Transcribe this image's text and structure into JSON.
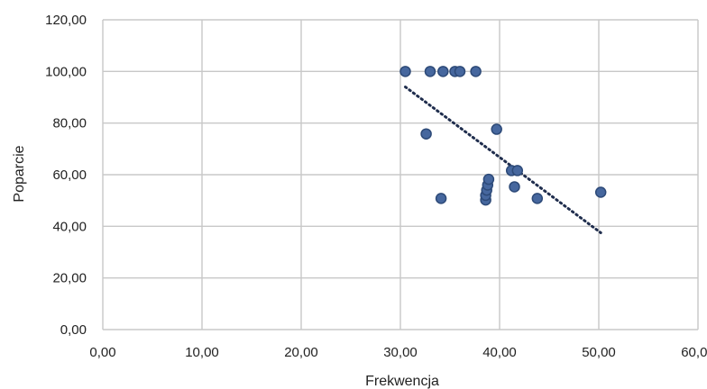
{
  "chart_data": {
    "type": "scatter",
    "xlabel": "Frekwencja",
    "ylabel": "Poparcie",
    "xlim": [
      0,
      60
    ],
    "ylim": [
      0,
      120
    ],
    "grid": true,
    "x_ticks": [
      0,
      10,
      20,
      30,
      40,
      50,
      60
    ],
    "y_ticks": [
      0,
      20,
      40,
      60,
      80,
      100,
      120
    ],
    "x_tick_labels": [
      "0,00",
      "10,00",
      "20,00",
      "30,00",
      "40,00",
      "50,00",
      "60,00"
    ],
    "y_tick_labels": [
      "0,00",
      "20,00",
      "40,00",
      "60,00",
      "80,00",
      "100,00",
      "120,00"
    ],
    "points": [
      {
        "x": 30.5,
        "y": 100.0
      },
      {
        "x": 33.0,
        "y": 100.0
      },
      {
        "x": 34.3,
        "y": 100.0
      },
      {
        "x": 35.5,
        "y": 100.0
      },
      {
        "x": 36.0,
        "y": 100.0
      },
      {
        "x": 37.6,
        "y": 100.0
      },
      {
        "x": 32.6,
        "y": 75.8
      },
      {
        "x": 39.7,
        "y": 77.6
      },
      {
        "x": 34.1,
        "y": 50.8
      },
      {
        "x": 38.6,
        "y": 50.2
      },
      {
        "x": 38.6,
        "y": 52.0
      },
      {
        "x": 38.7,
        "y": 54.0
      },
      {
        "x": 38.8,
        "y": 56.0
      },
      {
        "x": 38.9,
        "y": 58.2
      },
      {
        "x": 41.2,
        "y": 61.6
      },
      {
        "x": 41.8,
        "y": 61.6
      },
      {
        "x": 41.5,
        "y": 55.3
      },
      {
        "x": 43.8,
        "y": 50.8
      },
      {
        "x": 50.2,
        "y": 53.2
      }
    ],
    "trendline": {
      "style": "dotted",
      "x": [
        30.5,
        50.2
      ],
      "y": [
        94.0,
        37.5
      ]
    },
    "colors": {
      "marker_fill": "#46679e",
      "marker_stroke": "#2d4a78",
      "trendline": "#1f2d4d",
      "grid": "#c8c8c8"
    }
  }
}
